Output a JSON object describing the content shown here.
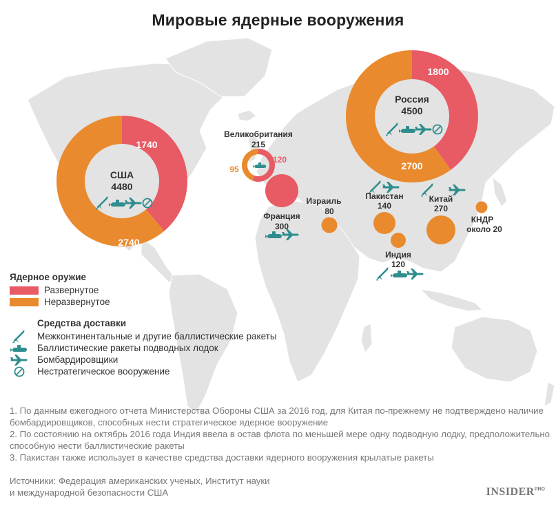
{
  "title": "Мировые ядерные вооружения",
  "colors": {
    "deployed": "#e85a64",
    "nondeployed": "#ea8a2e",
    "icon": "#2f8d8d",
    "map": "#e3e3e3"
  },
  "chart_data": {
    "type": "pie",
    "title": "Мировые ядерные вооружения",
    "series_names": [
      "Развернутое",
      "Неразвернутое"
    ],
    "countries": [
      {
        "name": "США",
        "total": "4480",
        "deployed": 1740,
        "nondeployed": 2740,
        "deployed_label": "1740",
        "nondeployed_label": "2740",
        "delivery": [
          "icbm",
          "slbm",
          "bomber",
          "nonstrategic"
        ]
      },
      {
        "name": "Россия",
        "total": "4500",
        "deployed": 1800,
        "nondeployed": 2700,
        "deployed_label": "1800",
        "nondeployed_label": "2700",
        "delivery": [
          "icbm",
          "slbm",
          "bomber",
          "nonstrategic"
        ]
      },
      {
        "name": "Великобритания",
        "total": "215",
        "deployed": 120,
        "nondeployed": 95,
        "deployed_label": "120",
        "nondeployed_label": "95",
        "delivery": [
          "slbm"
        ]
      },
      {
        "name": "Франция",
        "total": "300",
        "deployed": 300,
        "nondeployed": 0,
        "delivery": [
          "slbm",
          "bomber"
        ]
      },
      {
        "name": "Израиль",
        "total": "80",
        "deployed": 0,
        "nondeployed": 80,
        "delivery": []
      },
      {
        "name": "Пакистан",
        "total": "140",
        "deployed": 0,
        "nondeployed": 140,
        "delivery": [
          "icbm",
          "bomber"
        ]
      },
      {
        "name": "Индия",
        "total": "120",
        "deployed": 0,
        "nondeployed": 120,
        "delivery": [
          "icbm",
          "slbm",
          "bomber"
        ]
      },
      {
        "name": "Китай",
        "total": "270",
        "deployed": 0,
        "nondeployed": 270,
        "delivery": [
          "icbm",
          "bomber"
        ]
      },
      {
        "name": "КНДР",
        "total": "около 20",
        "deployed": 0,
        "nondeployed": 20,
        "delivery": []
      }
    ]
  },
  "legend": {
    "heading": "Ядерное оружие",
    "deployed": "Развернутое",
    "nondeployed": "Неразвернутое"
  },
  "delivery": {
    "heading": "Средства доставки",
    "icbm": "Межконтинентальные и другие баллистические ракеты",
    "slbm": "Баллистические ракеты подводных лодок",
    "bomber": "Бомбардировщики",
    "nonstrategic": "Нестратегическое вооружение"
  },
  "notes": [
    "1. По данным ежегодного отчета Министерства Обороны США за 2016 год, для Китая по-прежнему не подтверждено наличие бомбардировщиков, способных нести стратегическое ядерное вооружение",
    "2. По состоянию на октябрь 2016 года Индия ввела в остав флота по меньшей мере одну подводную лодку, предположительно способную нести баллистические ракеты",
    "3. Пакистан также использует в качестве средства доставки ядерного вооружения крылатые ракеты"
  ],
  "sources": [
    "Источники: Федерация американских ученых, Институт науки",
    "и международной безопасности США"
  ],
  "brand": {
    "name": "INSIDER",
    "suffix": "PRO"
  }
}
